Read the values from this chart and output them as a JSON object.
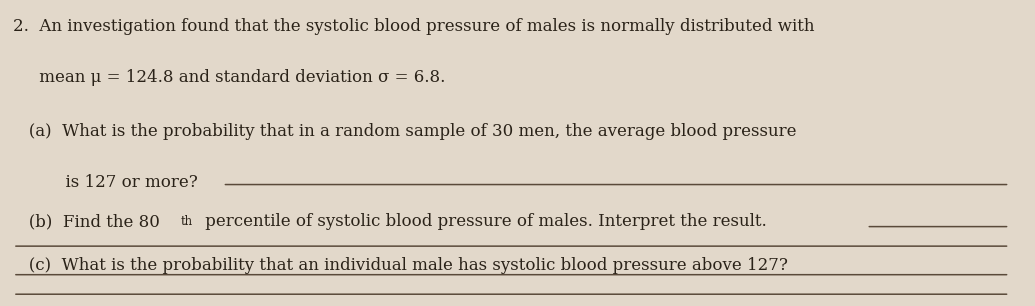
{
  "background_color": "#e2d8ca",
  "text_color": "#2a2218",
  "figsize": [
    10.35,
    3.06
  ],
  "dpi": 100,
  "line1": "2.  An investigation found that the systolic blood pressure of males is normally distributed with",
  "line2": "     mean μ = 124.8 and standard deviation σ = 6.8.",
  "line_a1": "   (a)  What is the probability that in a random sample of 30 men, the average blood pressure",
  "line_a2": "          is 127 or more?",
  "line_b_pre": "   (b)  Find the 80",
  "line_b_sup": "th",
  "line_b_post": " percentile of systolic blood pressure of males. Interpret the result.",
  "line_c1": "   (c)  What is the probability that an individual male has systolic blood pressure above 127?",
  "underline_color": "#5a4a3a",
  "font_size_main": 12.0,
  "font_size_sup": 8.5
}
